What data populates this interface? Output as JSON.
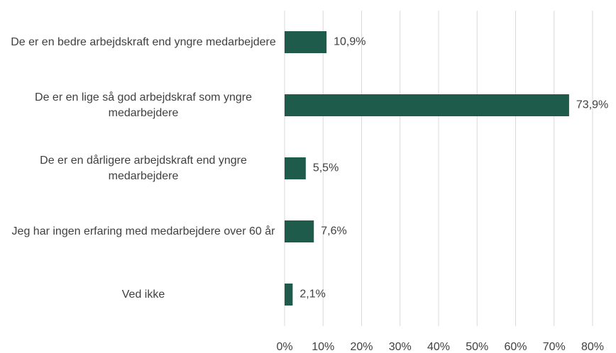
{
  "chart_data": {
    "type": "bar",
    "orientation": "horizontal",
    "categories": [
      "De er en bedre arbejdskraft end yngre medarbejdere",
      "De er en lige så god arbejdskraf som yngre medarbejdere",
      "De er en dårligere arbejdskraft end yngre medarbejdere",
      "Jeg har ingen erfaring med medarbejdere over 60 år",
      "Ved ikke"
    ],
    "values": [
      10.9,
      73.9,
      5.5,
      7.6,
      2.1
    ],
    "value_labels": [
      "10,9%",
      "73,9%",
      "5,5%",
      "7,6%",
      "2,1%"
    ],
    "color": "#1e5b4b",
    "xlim": [
      0,
      80
    ],
    "xticks": [
      {
        "value": 0,
        "label": "0%"
      },
      {
        "value": 10,
        "label": "10%"
      },
      {
        "value": 20,
        "label": "20%"
      },
      {
        "value": 30,
        "label": "30%"
      },
      {
        "value": 40,
        "label": "40%"
      },
      {
        "value": 50,
        "label": "50%"
      },
      {
        "value": 60,
        "label": "60%"
      },
      {
        "value": 70,
        "label": "70%"
      },
      {
        "value": 80,
        "label": "80%"
      }
    ],
    "grid": true
  }
}
